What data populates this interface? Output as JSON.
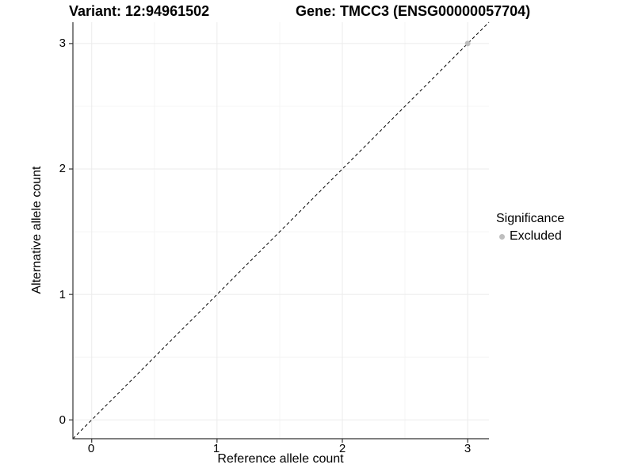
{
  "chart_data": {
    "type": "scatter",
    "title_left": "Variant: 12:94961502",
    "title_right": "Gene: TMCC3 (ENSG00000057704)",
    "xlabel": "Reference allele count",
    "ylabel": "Alternative allele count",
    "xticks": [
      "0",
      "1",
      "2",
      "3"
    ],
    "yticks": [
      "0",
      "1",
      "2",
      "3"
    ],
    "xlim": [
      -0.15,
      3.17
    ],
    "ylim": [
      -0.15,
      3.17
    ],
    "minor_gridlines": [
      0.5,
      1.5,
      2.5
    ],
    "grid": true,
    "reference_line": {
      "type": "identity",
      "slope": 1,
      "intercept": 0,
      "style": "dashed",
      "color": "#000000"
    },
    "series": [
      {
        "name": "Excluded",
        "color": "#bebebe",
        "points": [
          [
            3,
            3
          ]
        ]
      }
    ],
    "legend": {
      "title": "Significance",
      "position": "right",
      "items": [
        {
          "label": "Excluded",
          "color": "#bebebe"
        }
      ]
    },
    "colors": {
      "background": "#ffffff",
      "major_grid": "#ebebeb",
      "minor_grid": "#f5f5f5",
      "axis_line": "#333333",
      "text": "#000000"
    }
  }
}
